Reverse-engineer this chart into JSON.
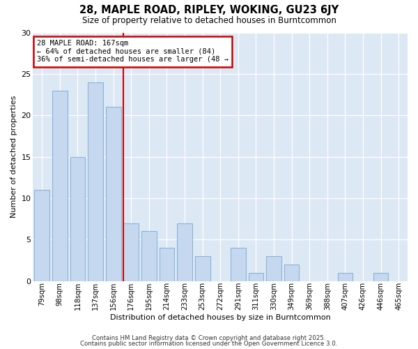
{
  "title": "28, MAPLE ROAD, RIPLEY, WOKING, GU23 6JY",
  "subtitle": "Size of property relative to detached houses in Burntcommon",
  "xlabel": "Distribution of detached houses by size in Burntcommon",
  "ylabel": "Number of detached properties",
  "categories": [
    "79sqm",
    "98sqm",
    "118sqm",
    "137sqm",
    "156sqm",
    "176sqm",
    "195sqm",
    "214sqm",
    "233sqm",
    "253sqm",
    "272sqm",
    "291sqm",
    "311sqm",
    "330sqm",
    "349sqm",
    "369sqm",
    "388sqm",
    "407sqm",
    "426sqm",
    "446sqm",
    "465sqm"
  ],
  "values": [
    11,
    23,
    15,
    24,
    21,
    7,
    6,
    4,
    7,
    3,
    0,
    4,
    1,
    3,
    2,
    0,
    0,
    1,
    0,
    1,
    0
  ],
  "bar_color": "#c5d8f0",
  "bar_edge_color": "#88b4d8",
  "red_line_x": 5,
  "annotation_title": "28 MAPLE ROAD: 167sqm",
  "annotation_line2": "← 64% of detached houses are smaller (84)",
  "annotation_line3": "36% of semi-detached houses are larger (48 →",
  "annotation_box_color": "#ffffff",
  "annotation_box_edge_color": "#cc0000",
  "ylim": [
    0,
    30
  ],
  "yticks": [
    0,
    5,
    10,
    15,
    20,
    25,
    30
  ],
  "plot_bg_color": "#dde8f5",
  "fig_bg_color": "#ffffff",
  "footer_line1": "Contains HM Land Registry data © Crown copyright and database right 2025.",
  "footer_line2": "Contains public sector information licensed under the Open Government Licence 3.0."
}
